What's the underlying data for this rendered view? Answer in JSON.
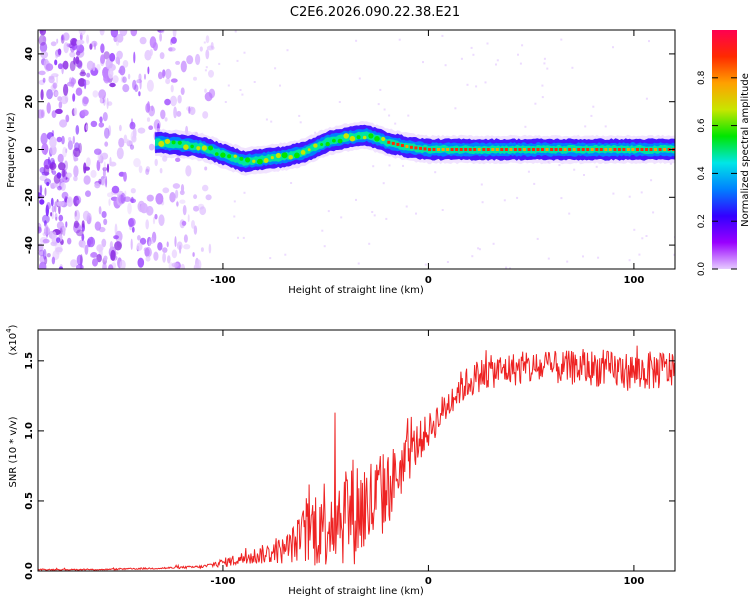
{
  "title": "C2E6.2026.090.22.38.E21",
  "chart_data": [
    {
      "type": "heatmap",
      "title": "C2E6.2026.090.22.38.E21",
      "xlabel": "Height of straight line (km)",
      "ylabel": "Frequency (Hz)",
      "xlim": [
        -190,
        120
      ],
      "ylim": [
        -50,
        50
      ],
      "xticks": [
        -100,
        0,
        100
      ],
      "yticks": [
        -40,
        -20,
        0,
        20,
        40
      ],
      "colorbar": {
        "label": "Normalized spectral amplitude",
        "range": [
          0,
          1
        ],
        "ticks": [
          "0.0",
          "0.2",
          "0.4",
          "0.6",
          "0.8"
        ],
        "colors": [
          "#e6ccff",
          "#9900ff",
          "#3300ff",
          "#0080ff",
          "#00e6e6",
          "#00e600",
          "#c8e600",
          "#ffa000",
          "#ff2a00",
          "#ff0050"
        ]
      },
      "ridge": {
        "x": [
          -133,
          -120,
          -110,
          -100,
          -90,
          -80,
          -70,
          -60,
          -50,
          -40,
          -30,
          -20,
          -10,
          0,
          20,
          40,
          60,
          80,
          100,
          120
        ],
        "freq": [
          3,
          2,
          1,
          -2,
          -5,
          -4,
          -3,
          -1,
          3,
          5,
          6,
          3,
          1,
          0,
          0,
          0,
          0,
          0,
          0,
          0
        ]
      },
      "noise_region_x": [
        -190,
        -105
      ]
    },
    {
      "type": "line",
      "xlabel": "Height of straight line (km)",
      "ylabel": "SNR (10 * v/v)",
      "y_multiplier": "(x10",
      "y_multiplier_exp": "4",
      "xlim": [
        -190,
        120
      ],
      "ylim": [
        0,
        1.72
      ],
      "xticks": [
        -100,
        0,
        100
      ],
      "yticks": [
        "0.0",
        "0.5",
        "1.0",
        "1.5"
      ],
      "series": [
        {
          "name": "SNR",
          "color": "#ee2222",
          "x": [
            -190,
            -160,
            -130,
            -110,
            -100,
            -90,
            -80,
            -70,
            -65,
            -60,
            -55,
            -50,
            -45,
            -40,
            -35,
            -30,
            -25,
            -20,
            -15,
            -10,
            -5,
            0,
            5,
            10,
            15,
            20,
            25,
            30,
            40,
            60,
            80,
            100,
            120
          ],
          "y": [
            0.01,
            0.01,
            0.02,
            0.03,
            0.06,
            0.09,
            0.12,
            0.15,
            0.2,
            0.26,
            0.32,
            0.36,
            0.4,
            0.42,
            0.44,
            0.45,
            0.5,
            0.58,
            0.7,
            0.8,
            0.92,
            1.0,
            1.1,
            1.2,
            1.3,
            1.35,
            1.4,
            1.42,
            1.44,
            1.45,
            1.45,
            1.42,
            1.44
          ],
          "noise_amplitude": [
            0.004,
            0.004,
            0.006,
            0.01,
            0.03,
            0.05,
            0.07,
            0.1,
            0.14,
            0.22,
            0.3,
            0.34,
            0.36,
            0.38,
            0.4,
            0.38,
            0.34,
            0.28,
            0.22,
            0.18,
            0.15,
            0.12,
            0.12,
            0.12,
            0.12,
            0.12,
            0.12,
            0.12,
            0.12,
            0.12,
            0.13,
            0.14,
            0.14
          ]
        }
      ]
    }
  ]
}
